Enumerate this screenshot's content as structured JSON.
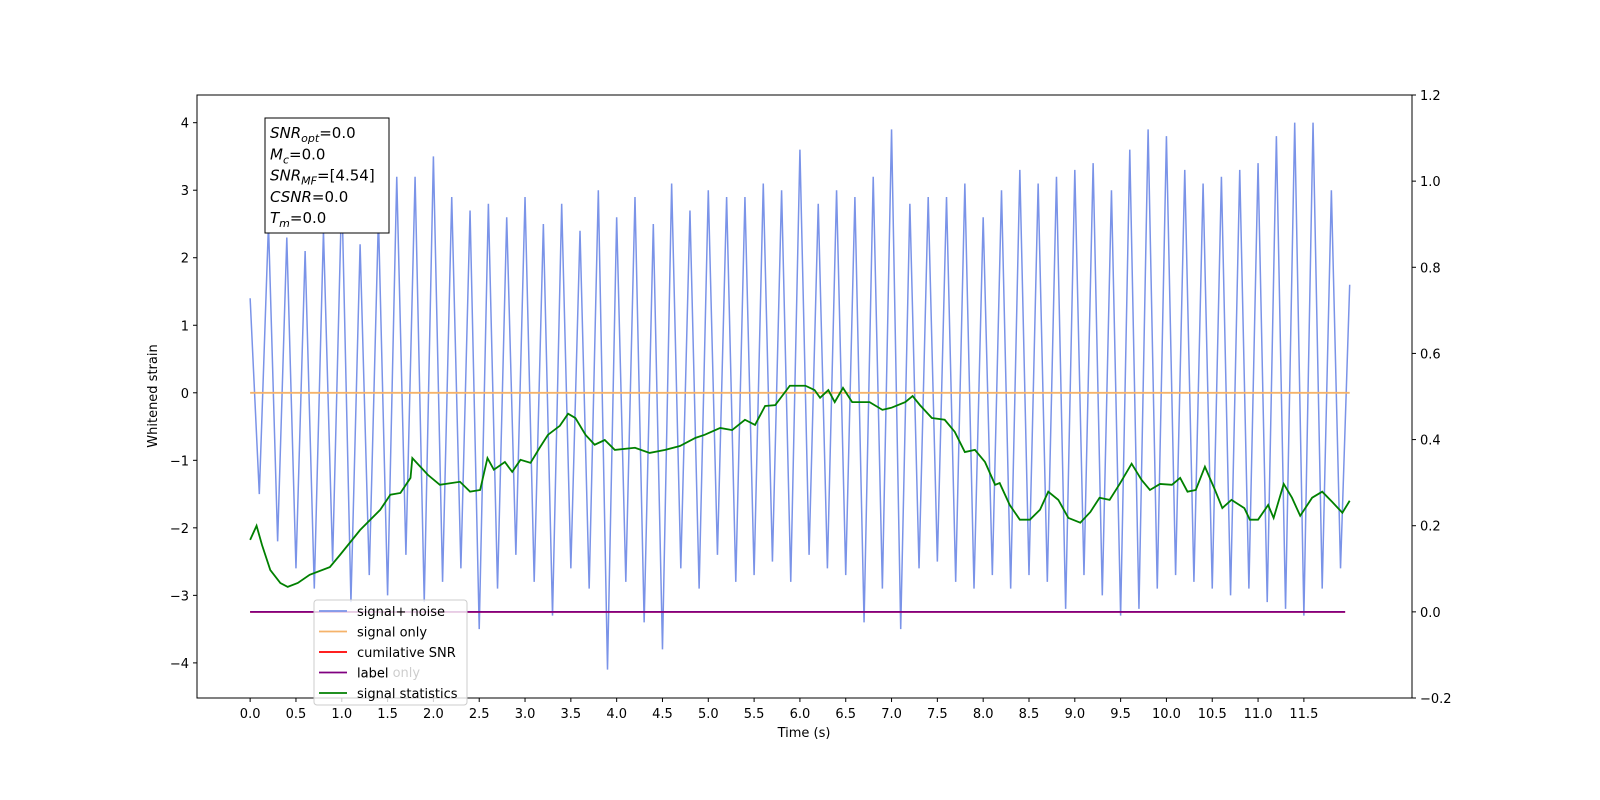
{
  "chart_data": {
    "type": "line",
    "xlabel": "Time (s)",
    "ylabel": "Whitened strain",
    "xlim": [
      -0.58,
      12.68
    ],
    "ylim": [
      -4.52,
      4.41
    ],
    "y2lim": [
      -0.2,
      1.2
    ],
    "xticks": [
      {
        "value": 0,
        "label": "0.0"
      },
      {
        "value": 0.5,
        "label": "0.5"
      },
      {
        "value": 1,
        "label": "1.0"
      },
      {
        "value": 1.5,
        "label": "1.5"
      },
      {
        "value": 2,
        "label": "2.0"
      },
      {
        "value": 2.5,
        "label": "2.5"
      },
      {
        "value": 3,
        "label": "3.0"
      },
      {
        "value": 3.5,
        "label": "3.5"
      },
      {
        "value": 4,
        "label": "4.0"
      },
      {
        "value": 4.5,
        "label": "4.5"
      },
      {
        "value": 5,
        "label": "5.0"
      },
      {
        "value": 5.5,
        "label": "5.5"
      },
      {
        "value": 6,
        "label": "6.0"
      },
      {
        "value": 6.5,
        "label": "6.5"
      },
      {
        "value": 7,
        "label": "7.0"
      },
      {
        "value": 7.5,
        "label": "7.5"
      },
      {
        "value": 8,
        "label": "8.0"
      },
      {
        "value": 8.5,
        "label": "8.5"
      },
      {
        "value": 9,
        "label": "9.0"
      },
      {
        "value": 9.5,
        "label": "9.5"
      },
      {
        "value": 10,
        "label": "10.0"
      },
      {
        "value": 10.5,
        "label": "10.5"
      },
      {
        "value": 11,
        "label": "11.0"
      },
      {
        "value": 11.5,
        "label": "11.5"
      }
    ],
    "yticks": [
      {
        "value": -4,
        "label": "−4"
      },
      {
        "value": -3,
        "label": "−3"
      },
      {
        "value": -2,
        "label": "−2"
      },
      {
        "value": -1,
        "label": "−1"
      },
      0,
      1,
      2,
      3,
      4
    ],
    "y2ticks": [
      {
        "value": -0.2,
        "label": "−0.2"
      },
      {
        "value": 0,
        "label": "0.0"
      },
      {
        "value": 0.2,
        "label": "0.2"
      },
      {
        "value": 0.4,
        "label": "0.4"
      },
      {
        "value": 0.6,
        "label": "0.6"
      },
      {
        "value": 0.8,
        "label": "0.8"
      },
      {
        "value": 1.0,
        "label": "1.0"
      },
      {
        "value": 1.2,
        "label": "1.2"
      }
    ],
    "legend": "lower left",
    "legend_overlap_text": "label only",
    "stats_box": [
      {
        "name": "SNR",
        "sub": "opt",
        "value": "=0.0"
      },
      {
        "name": "M",
        "sub": "c",
        "value": "=0.0"
      },
      {
        "name": "SNR",
        "sub": "MF",
        "value": "=[4.54]"
      },
      {
        "name": "CSNR",
        "value": "=0.0"
      },
      {
        "name": "T",
        "sub": "m",
        "value": "=0.0"
      }
    ],
    "series": [
      {
        "name": "signal+ noise",
        "color": "#7a93e8",
        "x": [
          0,
          0.1,
          0.2,
          0.3,
          0.4,
          0.5,
          0.6,
          0.7,
          0.8,
          0.9,
          1,
          1.1,
          1.2,
          1.3,
          1.4,
          1.5,
          1.6,
          1.7,
          1.8,
          1.9,
          2,
          2.1,
          2.2,
          2.3,
          2.4,
          2.5,
          2.6,
          2.7,
          2.8,
          2.9,
          3,
          3.1,
          3.2,
          3.3,
          3.4,
          3.5,
          3.6,
          3.7,
          3.8,
          3.9,
          4,
          4.1,
          4.2,
          4.3,
          4.4,
          4.5,
          4.6,
          4.7,
          4.8,
          4.9,
          5,
          5.1,
          5.2,
          5.3,
          5.4,
          5.5,
          5.6,
          5.7,
          5.8,
          5.9,
          6,
          6.1,
          6.2,
          6.3,
          6.4,
          6.5,
          6.6,
          6.7,
          6.8,
          6.9,
          7,
          7.1,
          7.2,
          7.3,
          7.4,
          7.5,
          7.6,
          7.7,
          7.8,
          7.9,
          8,
          8.1,
          8.2,
          8.3,
          8.4,
          8.5,
          8.6,
          8.7,
          8.8,
          8.9,
          9,
          9.1,
          9.2,
          9.3,
          9.4,
          9.5,
          9.6,
          9.7,
          9.8,
          9.9,
          10,
          10.1,
          10.2,
          10.3,
          10.4,
          10.5,
          10.6,
          10.7,
          10.8,
          10.9,
          11,
          11.1,
          11.2,
          11.3,
          11.4,
          11.5,
          11.6,
          11.7,
          11.8,
          11.9,
          12
        ],
        "values": [
          1.4,
          -1.5,
          2.5,
          -2.2,
          2.3,
          -2.6,
          2.1,
          -2.9,
          2.4,
          -2.5,
          3.0,
          -3.1,
          2.2,
          -2.7,
          2.6,
          -3.0,
          3.2,
          -2.4,
          3.2,
          -3.1,
          3.5,
          -2.8,
          2.9,
          -2.6,
          2.7,
          -3.5,
          2.8,
          -2.9,
          2.6,
          -2.4,
          2.9,
          -2.8,
          2.5,
          -3.3,
          2.8,
          -2.6,
          2.4,
          -2.9,
          3.0,
          -4.1,
          2.6,
          -2.8,
          2.9,
          -3.4,
          2.5,
          -3.8,
          3.1,
          -2.6,
          2.7,
          -2.9,
          3.0,
          -2.4,
          2.9,
          -2.8,
          2.9,
          -2.7,
          3.1,
          -2.5,
          3.0,
          -2.8,
          3.6,
          -2.4,
          2.8,
          -2.6,
          3.0,
          -2.7,
          2.9,
          -3.4,
          3.2,
          -2.9,
          3.9,
          -3.5,
          2.8,
          -2.6,
          2.9,
          -2.5,
          2.9,
          -2.8,
          3.1,
          -2.9,
          2.6,
          -2.7,
          3.0,
          -2.9,
          3.3,
          -2.7,
          3.1,
          -2.8,
          3.2,
          -3.2,
          3.3,
          -2.7,
          3.4,
          -3.0,
          3.0,
          -3.3,
          3.6,
          -3.2,
          3.9,
          -2.9,
          3.8,
          -2.7,
          3.3,
          -2.8,
          3.1,
          -2.9,
          3.2,
          -3.0,
          3.3,
          -2.9,
          3.4,
          -3.1,
          3.8,
          -3.2,
          4.0,
          -3.3,
          4.0,
          -2.9,
          3.0,
          -2.6,
          1.6
        ]
      },
      {
        "name": "signal only",
        "color": "#f5b36a",
        "x": [
          0,
          12
        ],
        "values": [
          0,
          0
        ]
      },
      {
        "name": "cumilative SNR",
        "color": "#ff0000",
        "axis": "y2",
        "x": [
          0,
          11.95
        ],
        "values": [
          0,
          0
        ]
      },
      {
        "name": "label",
        "color": "#800080",
        "axis": "y2",
        "x": [
          0,
          11.95
        ],
        "values": [
          0,
          0
        ]
      },
      {
        "name": "signal statistics",
        "color": "#008000",
        "axis": "y2",
        "x": [
          0,
          0.07,
          0.13,
          0.22,
          0.33,
          0.41,
          0.52,
          0.65,
          0.87,
          0.98,
          1.2,
          1.42,
          1.53,
          1.64,
          1.75,
          1.77,
          1.94,
          2.07,
          2.29,
          2.4,
          2.51,
          2.59,
          2.66,
          2.78,
          2.86,
          2.95,
          3.06,
          3.16,
          3.25,
          3.38,
          3.47,
          3.55,
          3.66,
          3.76,
          3.87,
          3.98,
          4.2,
          4.36,
          4.53,
          4.69,
          4.86,
          4.96,
          5.13,
          5.26,
          5.4,
          5.51,
          5.62,
          5.73,
          5.89,
          6.06,
          6.16,
          6.22,
          6.31,
          6.38,
          6.47,
          6.57,
          6.76,
          6.9,
          7.0,
          7.15,
          7.23,
          7.31,
          7.44,
          7.58,
          7.69,
          7.8,
          7.91,
          8.02,
          8.13,
          8.18,
          8.29,
          8.4,
          8.51,
          8.62,
          8.71,
          8.82,
          8.93,
          9.06,
          9.17,
          9.27,
          9.38,
          9.49,
          9.62,
          9.73,
          9.82,
          9.93,
          10.06,
          10.15,
          10.23,
          10.32,
          10.42,
          10.53,
          10.61,
          10.71,
          10.85,
          10.91,
          11.0,
          11.11,
          11.17,
          11.28,
          11.37,
          11.46,
          11.59,
          11.7,
          11.81,
          11.92,
          12.0
        ],
        "values": [
          0.167,
          0.2,
          0.155,
          0.097,
          0.067,
          0.058,
          0.067,
          0.086,
          0.104,
          0.132,
          0.19,
          0.237,
          0.272,
          0.276,
          0.311,
          0.357,
          0.318,
          0.295,
          0.302,
          0.279,
          0.283,
          0.357,
          0.33,
          0.348,
          0.325,
          0.353,
          0.346,
          0.381,
          0.411,
          0.432,
          0.46,
          0.45,
          0.411,
          0.388,
          0.399,
          0.376,
          0.381,
          0.369,
          0.376,
          0.385,
          0.404,
          0.411,
          0.427,
          0.422,
          0.446,
          0.434,
          0.478,
          0.48,
          0.525,
          0.525,
          0.515,
          0.497,
          0.515,
          0.487,
          0.52,
          0.487,
          0.487,
          0.469,
          0.474,
          0.487,
          0.501,
          0.48,
          0.45,
          0.446,
          0.418,
          0.371,
          0.376,
          0.348,
          0.295,
          0.299,
          0.248,
          0.214,
          0.214,
          0.237,
          0.279,
          0.26,
          0.218,
          0.207,
          0.232,
          0.265,
          0.26,
          0.297,
          0.344,
          0.306,
          0.283,
          0.297,
          0.295,
          0.311,
          0.279,
          0.283,
          0.337,
          0.283,
          0.241,
          0.26,
          0.241,
          0.214,
          0.214,
          0.248,
          0.218,
          0.297,
          0.265,
          0.223,
          0.265,
          0.279,
          0.255,
          0.23,
          0.258
        ]
      }
    ]
  }
}
